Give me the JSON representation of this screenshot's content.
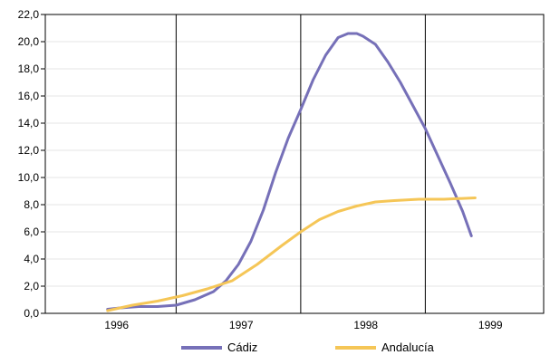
{
  "chart_data": {
    "type": "line",
    "title": "",
    "xlabel": "",
    "ylabel": "",
    "x_ticks": [
      "1996",
      "1997",
      "1998",
      "1999"
    ],
    "y_ticks": [
      "0,0",
      "2,0",
      "4,0",
      "6,0",
      "8,0",
      "10,0",
      "12,0",
      "14,0",
      "16,0",
      "18,0",
      "20,0",
      "22,0"
    ],
    "xlim": [
      1995.5,
      1999.5
    ],
    "ylim": [
      0,
      22
    ],
    "grid": "horizontal light lines; vertical dividers between years",
    "legend_position": "bottom-center",
    "series": [
      {
        "name": "Cádiz",
        "color": "#7670b8",
        "x": [
          1996.0,
          1996.1,
          1996.25,
          1996.4,
          1996.55,
          1996.7,
          1996.85,
          1996.95,
          1997.05,
          1997.15,
          1997.25,
          1997.35,
          1997.45,
          1997.55,
          1997.65,
          1997.75,
          1997.85,
          1997.93,
          1998.0,
          1998.05,
          1998.15,
          1998.25,
          1998.35,
          1998.45,
          1998.55,
          1998.65,
          1998.75,
          1998.85,
          1998.92
        ],
        "y": [
          0.3,
          0.4,
          0.5,
          0.5,
          0.6,
          1.0,
          1.6,
          2.4,
          3.6,
          5.3,
          7.6,
          10.4,
          12.9,
          15.0,
          17.2,
          19.0,
          20.3,
          20.6,
          20.6,
          20.4,
          19.8,
          18.5,
          17.0,
          15.3,
          13.6,
          11.6,
          9.6,
          7.5,
          5.7
        ]
      },
      {
        "name": "Andalucía",
        "color": "#f5c657",
        "x": [
          1996.0,
          1996.2,
          1996.4,
          1996.6,
          1996.8,
          1997.0,
          1997.2,
          1997.4,
          1997.55,
          1997.7,
          1997.85,
          1998.0,
          1998.15,
          1998.3,
          1998.5,
          1998.7,
          1998.95
        ],
        "y": [
          0.2,
          0.6,
          0.9,
          1.3,
          1.8,
          2.4,
          3.6,
          5.0,
          6.0,
          6.9,
          7.5,
          7.9,
          8.2,
          8.3,
          8.4,
          8.4,
          8.5
        ]
      }
    ]
  }
}
